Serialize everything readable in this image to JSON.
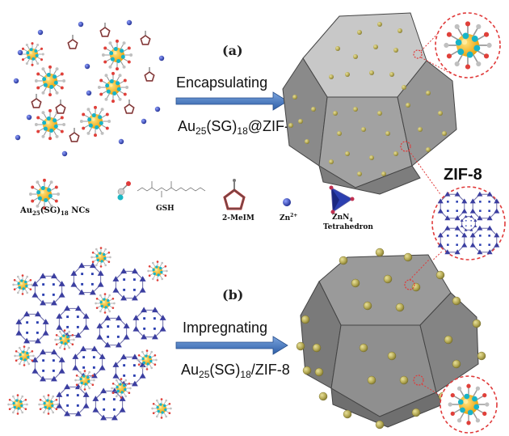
{
  "panel_a": {
    "label": "(a)",
    "process": "Encapsulating",
    "product_prefix": "Au",
    "product_sub1": "25",
    "product_mid": "(SG)",
    "product_sub2": "18",
    "product_suffix": "@ZIF-8"
  },
  "panel_b": {
    "label": "(b)",
    "process": "Impregnating",
    "product_prefix": "Au",
    "product_sub1": "25",
    "product_mid": "(SG)",
    "product_sub2": "18",
    "product_suffix": "/ZIF-8"
  },
  "zif_label": "ZIF-8",
  "legend": {
    "nc_prefix": "Au",
    "nc_sub1": "25",
    "nc_mid": "(SG)",
    "nc_sub2": "18",
    "nc_suffix": " NCs",
    "gsh": "GSH",
    "meim": "2-MeIM",
    "zn": "Zn",
    "zn_sup": "2+",
    "znn4_a": "ZnN",
    "znn4_sub": "4",
    "znn4_b": "Tetrahedron"
  },
  "colors": {
    "cluster_core": "#f5b914",
    "cluster_ligand": "#e0403a",
    "zn_ion": "#2b3fb0",
    "framework": "#3b3ea0",
    "crystal_face": "#8f8f8f",
    "dot": "#a9a050",
    "dash_circle": "#e03a3a",
    "arrow": "#4a78c0"
  }
}
